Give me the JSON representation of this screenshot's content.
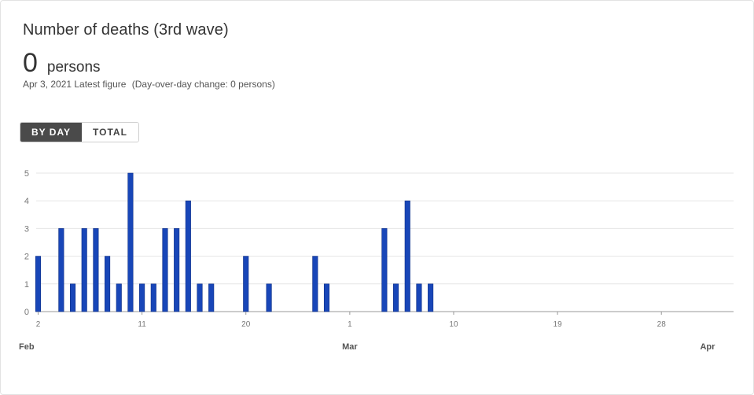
{
  "card": {
    "title": "Number of deaths (3rd wave)",
    "value": "0",
    "unit": "persons",
    "date": "Apr 3, 2021 Latest figure",
    "change": "(Day-over-day change: 0 persons)"
  },
  "toggle": {
    "by_day_label": "BY DAY",
    "total_label": "TOTAL",
    "active": "by_day"
  },
  "colors": {
    "bar": "#1846b8",
    "bar_border": "#0e2f86",
    "grid": "#e6e6e6",
    "axis": "#999999"
  },
  "chart_data": {
    "type": "bar",
    "x_start": "Feb 2",
    "x_end": "Apr 2",
    "values": [
      2,
      0,
      3,
      1,
      3,
      3,
      2,
      1,
      5,
      1,
      1,
      3,
      3,
      4,
      1,
      1,
      0,
      0,
      2,
      0,
      1,
      0,
      0,
      0,
      2,
      1,
      0,
      0,
      0,
      0,
      3,
      1,
      4,
      1,
      1,
      0,
      0,
      0,
      0,
      0,
      0,
      0,
      0,
      0,
      0,
      0,
      0,
      0,
      0,
      0,
      0,
      0,
      0,
      0,
      0,
      0,
      0,
      0,
      0,
      0
    ],
    "ylim": [
      0,
      5
    ],
    "y_ticks": [
      "0",
      "1",
      "2",
      "3",
      "4",
      "5"
    ],
    "x_ticks": [
      {
        "index": 0,
        "label": "2"
      },
      {
        "index": 9,
        "label": "11"
      },
      {
        "index": 18,
        "label": "20"
      },
      {
        "index": 27,
        "label": "1"
      },
      {
        "index": 36,
        "label": "10"
      },
      {
        "index": 45,
        "label": "19"
      },
      {
        "index": 54,
        "label": "28"
      }
    ],
    "months": [
      {
        "index": -1,
        "label": "Feb"
      },
      {
        "index": 27,
        "label": "Mar"
      },
      {
        "index": 58,
        "label": "Apr"
      }
    ],
    "grid": true
  }
}
